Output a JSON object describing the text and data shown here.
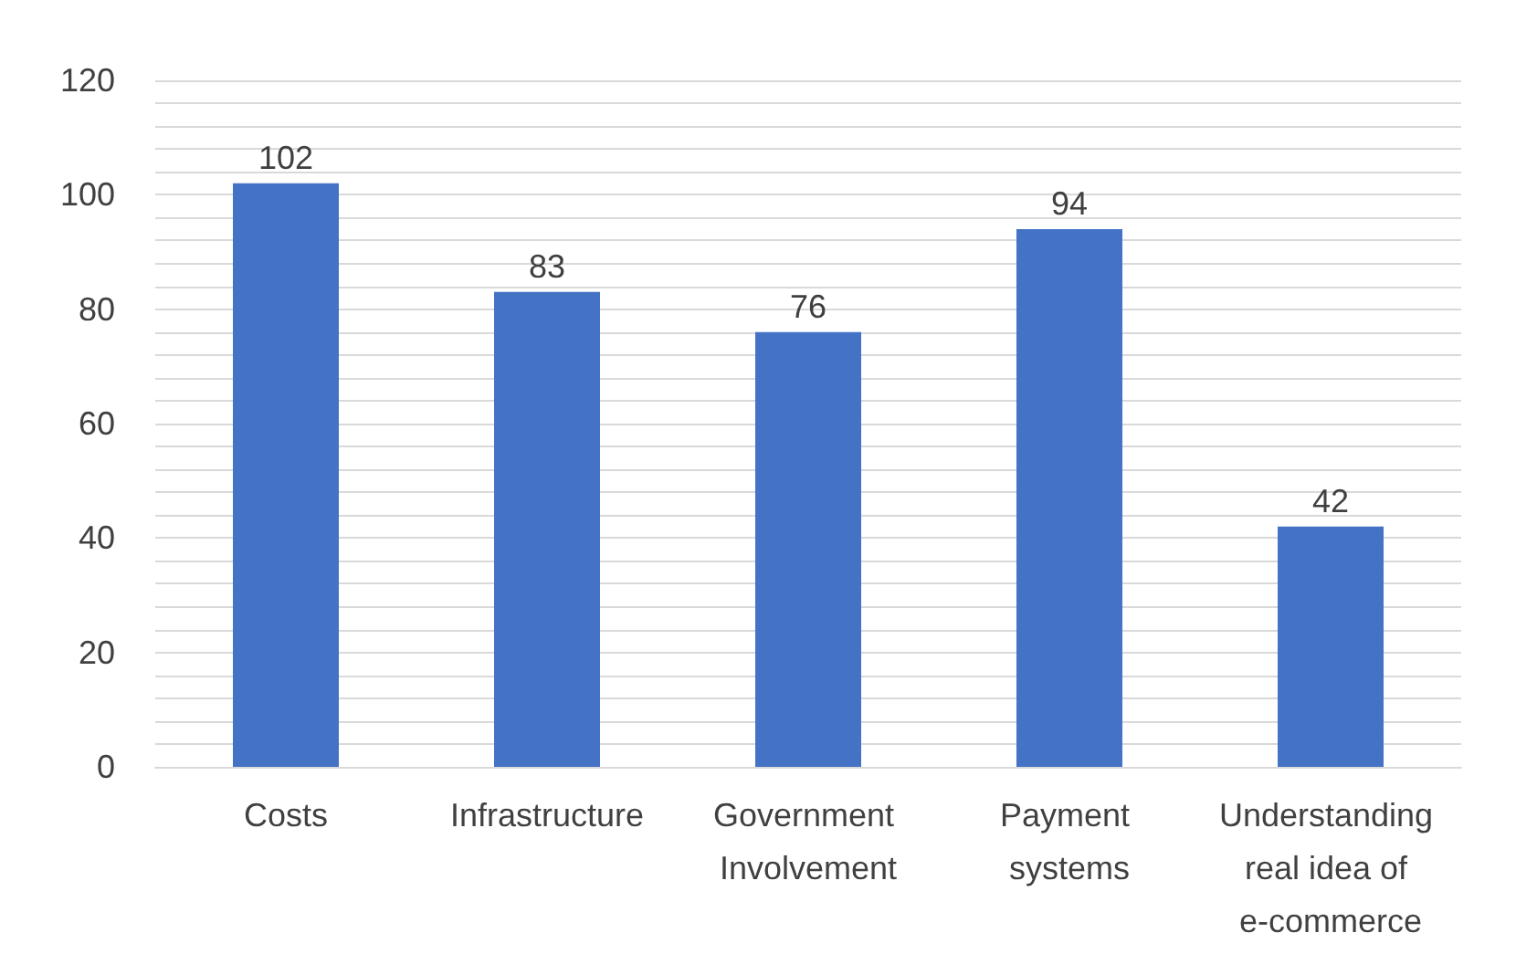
{
  "chart_data": {
    "type": "bar",
    "categories": [
      "Costs",
      "Infrastructure",
      "Government Involvement",
      "Payment systems",
      "Understanding real idea of e-commerce"
    ],
    "values": [
      102,
      83,
      76,
      94,
      42
    ],
    "color": "#4472c4",
    "ylim": [
      0,
      120
    ],
    "yticks": [
      0,
      {
        "value": 4,
        "label": null
      },
      {
        "value": 8,
        "label": null
      },
      {
        "value": 12,
        "label": null
      },
      {
        "value": 16,
        "label": null
      },
      20,
      {
        "value": 24,
        "label": null
      },
      {
        "value": 28,
        "label": null
      },
      {
        "value": 32,
        "label": null
      },
      {
        "value": 36,
        "label": null
      },
      40,
      {
        "value": 44,
        "label": null
      },
      {
        "value": 48,
        "label": null
      },
      {
        "value": 52,
        "label": null
      },
      {
        "value": 56,
        "label": null
      },
      60,
      {
        "value": 64,
        "label": null
      },
      {
        "value": 68,
        "label": null
      },
      {
        "value": 72,
        "label": null
      },
      {
        "value": 76,
        "label": null
      },
      80,
      {
        "value": 84,
        "label": null
      },
      {
        "value": 88,
        "label": null
      },
      {
        "value": 92,
        "label": null
      },
      {
        "value": 96,
        "label": null
      },
      100,
      {
        "value": 104,
        "label": null
      },
      {
        "value": 108,
        "label": null
      },
      {
        "value": 112,
        "label": null
      },
      {
        "value": 116,
        "label": null
      },
      120
    ],
    "grid": true,
    "data_labels": true
  }
}
